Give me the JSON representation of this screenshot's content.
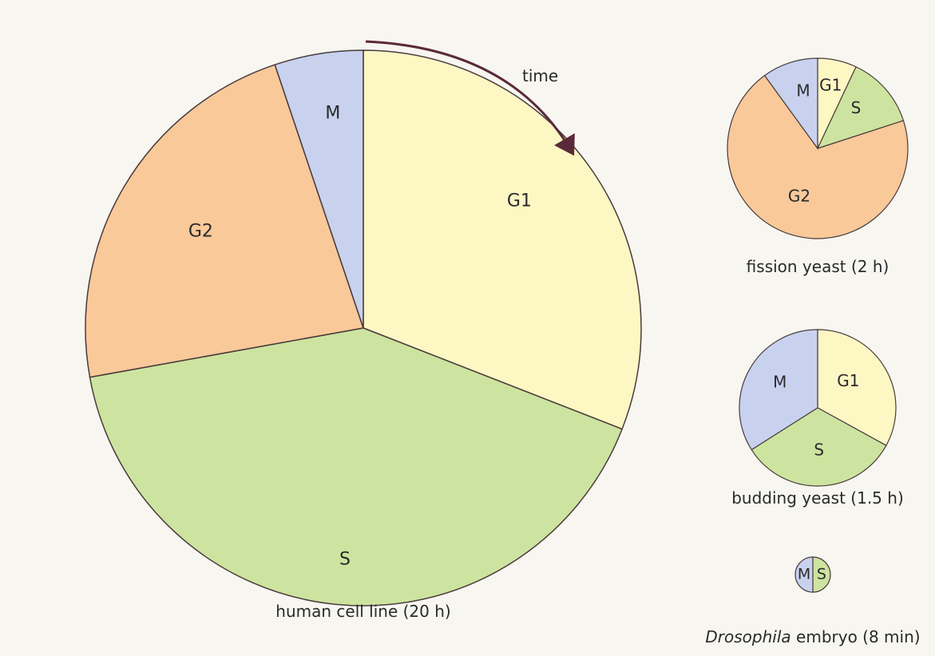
{
  "arrow_label": "time",
  "colors": {
    "G1": "#fdf7c4",
    "S": "#cde4a0",
    "G2": "#f9c99a",
    "M": "#c8d2ef",
    "stroke": "#4a3b3b",
    "arrow": "#5a2a3a"
  },
  "chart_data": [
    {
      "type": "pie",
      "caption": "human cell line (20 h)",
      "slices": [
        {
          "label": "G1",
          "value": 0.3
        },
        {
          "label": "S",
          "value": 0.4
        },
        {
          "label": "G2",
          "value": 0.22
        },
        {
          "label": "M",
          "value": 0.05
        }
      ]
    },
    {
      "type": "pie",
      "caption": "fission yeast (2 h)",
      "slices": [
        {
          "label": "G1",
          "value": 0.07
        },
        {
          "label": "S",
          "value": 0.13
        },
        {
          "label": "G2",
          "value": 0.7
        },
        {
          "label": "M",
          "value": 0.1
        }
      ]
    },
    {
      "type": "pie",
      "caption": "budding yeast (1.5 h)",
      "slices": [
        {
          "label": "G1",
          "value": 0.33
        },
        {
          "label": "S",
          "value": 0.33
        },
        {
          "label": "M",
          "value": 0.34
        }
      ]
    },
    {
      "type": "pie",
      "caption_italic": "Drosophila",
      "caption": " embryo (8 min)",
      "slices": [
        {
          "label": "S",
          "value": 0.5
        },
        {
          "label": "M",
          "value": 0.5
        }
      ]
    }
  ]
}
